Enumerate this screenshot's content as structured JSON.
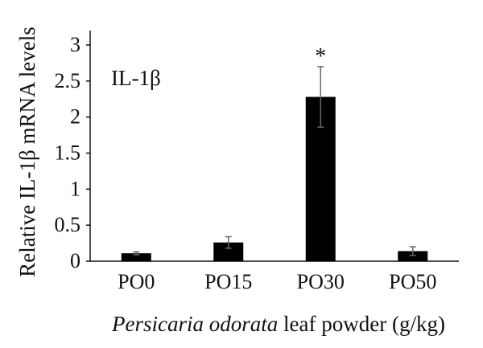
{
  "chart_data": {
    "type": "bar",
    "panel_label": "IL-1β",
    "ylabel": "Relative IL-1β mRNA levels",
    "xlabel_italic": "Persicaria odorata",
    "xlabel_rest": " leaf powder (g/kg)",
    "categories": [
      "PO0",
      "PO15",
      "PO30",
      "PO50"
    ],
    "values": [
      0.11,
      0.26,
      2.28,
      0.14
    ],
    "errors": [
      0.02,
      0.08,
      0.42,
      0.06
    ],
    "significance": [
      "",
      "",
      "*",
      ""
    ],
    "ylim": [
      0,
      3
    ],
    "yticks": [
      0,
      0.5,
      1,
      1.5,
      2,
      2.5,
      3
    ],
    "ytick_labels": [
      "0",
      "0.5",
      "1",
      "1.5",
      "2",
      "2.5",
      "3"
    ],
    "bar_color": "#000000",
    "grid": false,
    "legend": "none"
  }
}
